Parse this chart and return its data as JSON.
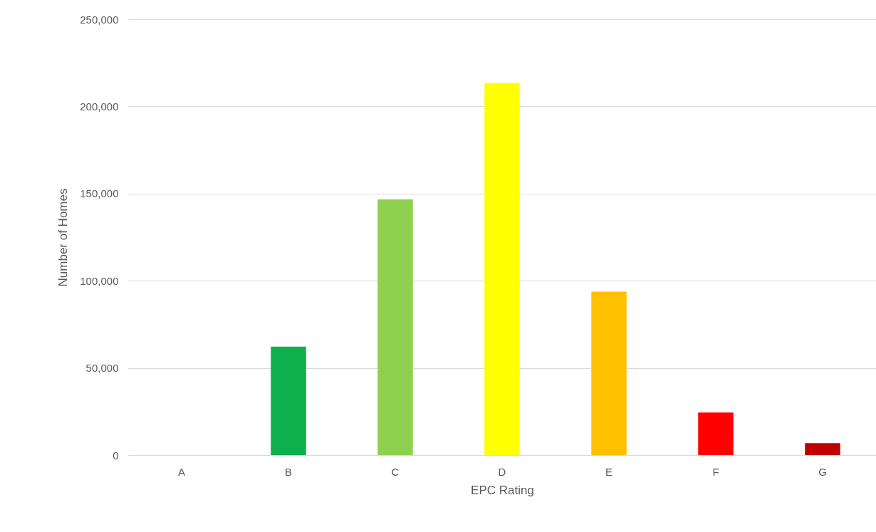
{
  "chart_data": {
    "type": "bar",
    "xlabel": "EPC Rating",
    "ylabel": "Number of Homes",
    "categories": [
      "A",
      "B",
      "C",
      "D",
      "E",
      "F",
      "G"
    ],
    "values": [
      0,
      62200,
      146600,
      213400,
      93800,
      24400,
      6800
    ],
    "colors": [
      "#00a651",
      "#0db04b",
      "#8fd14f",
      "#ffff00",
      "#ffc000",
      "#ff0000",
      "#c00000"
    ],
    "ylim": [
      0,
      250000
    ],
    "yticks": [
      {
        "value": 0,
        "label": "0"
      },
      {
        "value": 50000,
        "label": "50,000"
      },
      {
        "value": 100000,
        "label": "100,000"
      },
      {
        "value": 150000,
        "label": "150,000"
      },
      {
        "value": 200000,
        "label": "200,000"
      },
      {
        "value": 250000,
        "label": "250,000"
      }
    ],
    "grid": "y"
  }
}
